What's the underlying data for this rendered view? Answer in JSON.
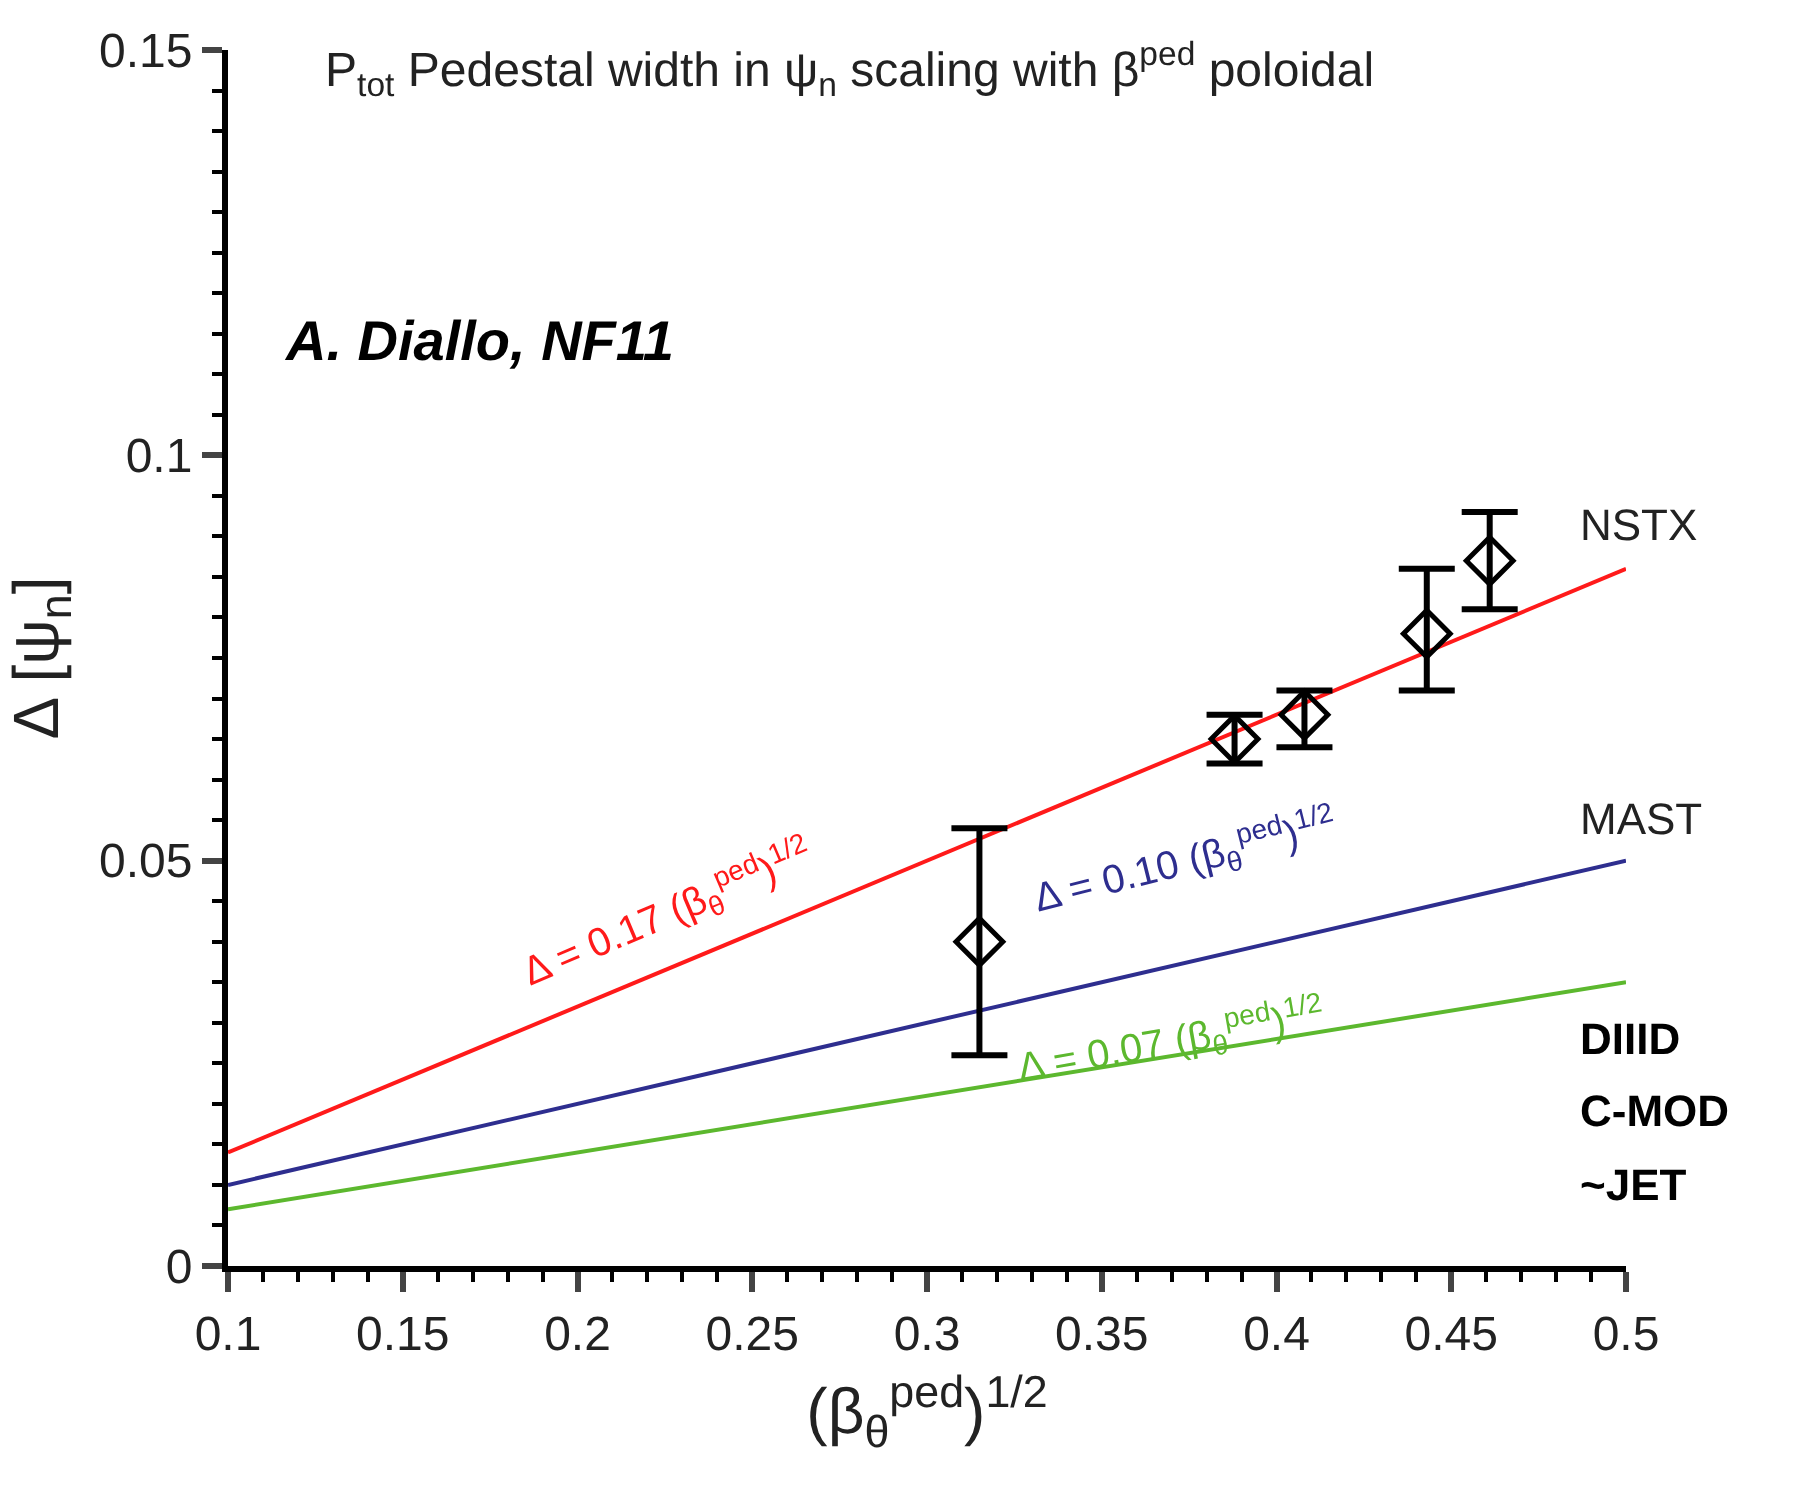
{
  "chart_data": {
    "type": "line",
    "title": "P$_{tot}$ Pedestal width in ψ$_{n}$ scaling with β$^{ped}$ poloidal",
    "xlabel": "(β$_{θ}$$^{ped}$)$^{1/2}$",
    "ylabel": "Δ [ψ$_{n}$]",
    "xlim": [
      0.1,
      0.5
    ],
    "xticks": [
      0.1,
      0.15,
      0.2,
      0.25,
      0.3,
      0.35,
      0.4,
      0.45,
      0.5
    ],
    "ylim": [
      0,
      0.15
    ],
    "yticks": [
      0,
      0.05,
      {
        "value": 0.1,
        "label": "0.1"
      },
      0.15
    ],
    "legend": false,
    "series": [
      {
        "color": "#ff1a1a",
        "x": [
          0.1,
          0.5
        ],
        "values": [
          0.014,
          0.086
        ],
        "marker": "none"
      },
      {
        "color": "#2e2e8f",
        "x": [
          0.1,
          0.5
        ],
        "values": [
          0.01,
          0.05
        ],
        "marker": "none"
      },
      {
        "color": "#5cb82e",
        "x": [
          0.1,
          0.5
        ],
        "values": [
          0.007,
          0.035
        ],
        "marker": "none"
      },
      {
        "type": "scatter",
        "color": "#000000",
        "x": [
          0.315,
          0.388,
          0.408,
          0.443,
          0.461
        ],
        "values": [
          0.04,
          0.065,
          0.068,
          0.078,
          0.087
        ],
        "errors": [
          [
            0.026,
            0.054
          ],
          [
            0.062,
            0.068
          ],
          [
            0.064,
            0.071
          ],
          [
            0.071,
            0.086
          ],
          [
            0.081,
            0.093
          ]
        ],
        "marker": "diamond"
      }
    ],
    "annotations": [
      "A. Diallo, NF11",
      {
        "text": "NSTX",
        "x": 0.5,
        "y": 0.086
      },
      {
        "text": "MAST",
        "x": 0.5,
        "y": 0.05
      },
      "DIIID",
      "Δ = 0.17 (β$_{θ}$$^{ped}$)$^{1/2}$",
      "Δ = 0.10 (β$_{θ}$$^{ped}$)$^{1/2}$",
      "Δ = 0.07 (β$_{θ}$$^{ped}$)$^{1/2}$",
      "C-MOD",
      "~JET"
    ]
  }
}
